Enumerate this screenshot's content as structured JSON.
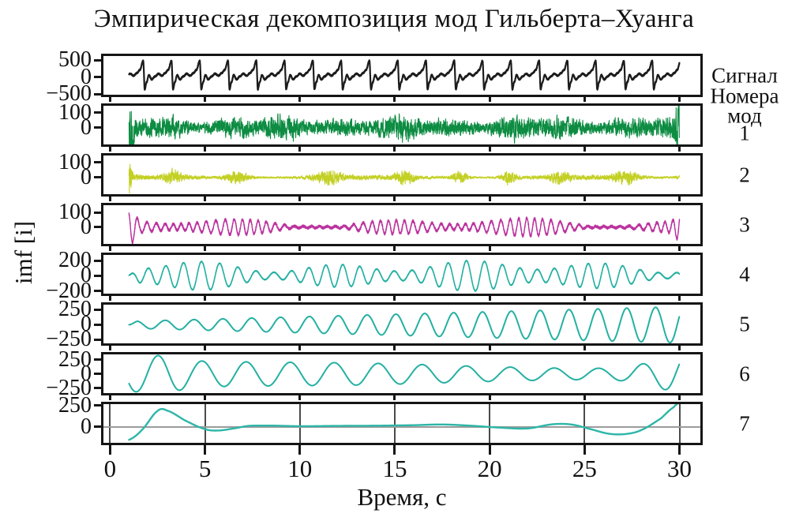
{
  "title": "Эмпирическая декомпозиция мод Гильберта–Хуанга",
  "right_header": {
    "line1": "Номера",
    "line2": "мод"
  },
  "chart_data": {
    "type": "line",
    "title": "Эмпирическая декомпозиция мод Гильберта–Хуанга",
    "xlabel": "Время, с",
    "ylabel": "imf [i]",
    "x_ticks": [
      0,
      5,
      10,
      15,
      20,
      25,
      30
    ],
    "x_tick_labels": [
      "0",
      "5",
      "10",
      "15",
      "20",
      "25",
      "30"
    ],
    "x_data_range": [
      1,
      30
    ],
    "x_axis_range": [
      -0.35,
      31.1
    ],
    "frame_color": "#151515",
    "panels": [
      {
        "id": "signal",
        "right_label": "Сигнал",
        "color": "#1c1c1c",
        "line_width": 2.2,
        "ylim": [
          -520,
          620
        ],
        "yticks": [
          {
            "v": 500,
            "label": "500"
          },
          {
            "v": 0,
            "label": "0"
          },
          {
            "v": -500,
            "label": "−500"
          }
        ],
        "waveform": {
          "kind": "cycles",
          "seed": 11,
          "dt": 0.004,
          "period": 1.49,
          "phase": 0.3,
          "noise": 18,
          "shape": [
            [
              0,
              60
            ],
            [
              0.1,
              -70
            ],
            [
              0.22,
              20
            ],
            [
              0.34,
              100
            ],
            [
              0.46,
              40
            ],
            [
              0.58,
              120
            ],
            [
              0.68,
              210
            ],
            [
              0.8,
              480
            ],
            [
              0.855,
              -360
            ],
            [
              0.92,
              -150
            ],
            [
              1,
              60
            ]
          ]
        }
      },
      {
        "id": "mode-1",
        "right_label": "1",
        "color": "#0d8c42",
        "line_width": 1.1,
        "ylim": [
          -110,
          145
        ],
        "yticks": [
          {
            "v": 100,
            "label": "100"
          },
          {
            "v": 0,
            "label": "0"
          }
        ],
        "waveform": {
          "kind": "noise",
          "seed": 22,
          "dt": 0.006,
          "smooth": 0.55,
          "base": 40,
          "amp_terms": [
            {
              "a": 9,
              "f": 0.9,
              "p": 0.2
            },
            {
              "a": 8,
              "f": 2.1,
              "p": 1.1
            }
          ],
          "spikes": [
            {
              "t": 1.05,
              "w": 0.35,
              "gain": 2.2
            },
            {
              "t": 29.95,
              "w": 0.3,
              "gain": 1.8
            }
          ]
        }
      },
      {
        "id": "mode-2",
        "right_label": "2",
        "color": "#c3d024",
        "line_width": 1.1,
        "ylim": [
          -110,
          145
        ],
        "yticks": [
          {
            "v": 100,
            "label": "100"
          },
          {
            "v": 0,
            "label": "0"
          }
        ],
        "waveform": {
          "kind": "noise",
          "seed": 33,
          "dt": 0.006,
          "smooth": 0.5,
          "base": 8,
          "amp_terms": [
            {
              "a": 4,
              "f": 0.55,
              "p": 0.4
            }
          ],
          "burst": {
            "a": 26,
            "T": 3.4,
            "pow": 4
          },
          "init_spike": {
            "t0": 1.0,
            "t1": 1.22,
            "amp": 112
          },
          "spikes": [
            {
              "t": 29.9,
              "w": 0.25,
              "gain": 1.5
            }
          ]
        }
      },
      {
        "id": "mode-3",
        "right_label": "3",
        "color": "#bb339e",
        "line_width": 1.4,
        "ylim": [
          -115,
          150
        ],
        "yticks": [
          {
            "v": 100,
            "label": "100"
          },
          {
            "v": 0,
            "label": "0"
          }
        ],
        "waveform": {
          "kind": "mod_sine",
          "seed": 44,
          "dt": 0.005,
          "freq": 2.2,
          "pm": 0.9,
          "pf": 1.7,
          "noise": 9,
          "base": 30,
          "amp_terms": [
            {
              "a": 22,
              "f": 0.83,
              "p": 2.0
            },
            {
              "a": 14,
              "f": 0.37,
              "p": 0.5
            }
          ],
          "spikes": [
            {
              "t": 1.1,
              "w": 0.5,
              "gain": 1.6
            },
            {
              "t": 29.95,
              "w": 0.35,
              "gain": 1.4
            }
          ]
        }
      },
      {
        "id": "mode-4",
        "right_label": "4",
        "color": "#24b0a2",
        "line_width": 1.6,
        "ylim": [
          -235,
          275
        ],
        "yticks": [
          {
            "v": 200,
            "label": "200"
          },
          {
            "v": 0,
            "label": "0"
          },
          {
            "v": -200,
            "label": "−200"
          }
        ],
        "waveform": {
          "kind": "mod_sine",
          "seed": 55,
          "dt": 0.004,
          "freq": 1.08,
          "pm": 0.5,
          "pf": 0.52,
          "noise": 5,
          "base": 120,
          "amp_terms": [
            {
              "a": 55,
              "f": 0.9,
              "p": 3.4
            },
            {
              "a": 28,
              "f": 0.34,
              "p": 1.0
            }
          ],
          "taper": 0.6
        }
      },
      {
        "id": "mode-5",
        "right_label": "5",
        "color": "#24b0a2",
        "line_width": 2.0,
        "ylim": [
          -310,
          335
        ],
        "yticks": [
          {
            "v": 250,
            "label": "250"
          },
          {
            "v": 0,
            "label": "0"
          },
          {
            "v": -250,
            "label": "−250"
          }
        ],
        "waveform": {
          "kind": "grow_sine",
          "dt": 0.01,
          "period": 1.52,
          "t_ph": 1.0,
          "base": 58,
          "slope": 8.4,
          "taper": 0.5
        }
      },
      {
        "id": "mode-6",
        "right_label": "6",
        "color": "#24b0a2",
        "line_width": 2.0,
        "ylim": [
          -335,
          345
        ],
        "yticks": [
          {
            "v": 250,
            "label": "250"
          },
          {
            "v": 0,
            "label": "0"
          },
          {
            "v": -250,
            "label": "−250"
          }
        ],
        "waveform": {
          "kind": "env_sine",
          "dt": 0.01,
          "period": 2.32,
          "t_ph": 1.95,
          "env": [
            [
              1,
              310
            ],
            [
              3,
              320
            ],
            [
              4.5,
              235
            ],
            [
              7,
              215
            ],
            [
              10,
              205
            ],
            [
              13,
              195
            ],
            [
              16,
              170
            ],
            [
              19,
              140
            ],
            [
              22,
              115
            ],
            [
              25,
              100
            ],
            [
              27,
              120
            ],
            [
              28.5,
              210
            ],
            [
              30,
              330
            ]
          ]
        }
      },
      {
        "id": "mode-7",
        "right_label": "7",
        "color": "#2db6a8",
        "line_width": 2.4,
        "ylim": [
          -185,
          265
        ],
        "yticks": [
          {
            "v": 250,
            "label": "250"
          },
          {
            "v": 0,
            "label": "0"
          }
        ],
        "grid": {
          "vertical": "#4a4a4a",
          "zero": "#9b9b9b"
        },
        "waveform": {
          "kind": "spline",
          "dt": 0.02,
          "points": [
            [
              1,
              -150
            ],
            [
              1.7,
              -30
            ],
            [
              2.5,
              185
            ],
            [
              3.0,
              190
            ],
            [
              4.0,
              70
            ],
            [
              5.0,
              -25
            ],
            [
              5.7,
              -42
            ],
            [
              6.6,
              -15
            ],
            [
              7.3,
              12
            ],
            [
              8.5,
              15
            ],
            [
              10,
              8
            ],
            [
              12,
              12
            ],
            [
              14,
              14
            ],
            [
              16,
              20
            ],
            [
              17.5,
              28
            ],
            [
              19,
              14
            ],
            [
              20.5,
              -8
            ],
            [
              22,
              -18
            ],
            [
              23.3,
              30
            ],
            [
              24.3,
              28
            ],
            [
              25.3,
              -25
            ],
            [
              26.3,
              -80
            ],
            [
              27.2,
              -82
            ],
            [
              28,
              -35
            ],
            [
              29,
              95
            ],
            [
              29.7,
              230
            ],
            [
              30,
              280
            ]
          ]
        }
      }
    ]
  }
}
